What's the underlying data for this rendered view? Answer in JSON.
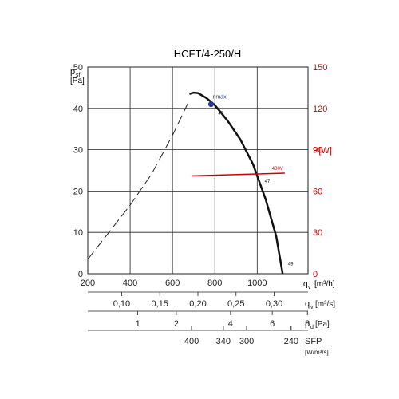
{
  "chart_data": {
    "type": "line",
    "title": "HCFT/4-250/H",
    "y_axis": {
      "label": "p",
      "subscript": "sf",
      "unit": "[Pa]",
      "ticks": [
        0,
        10,
        20,
        30,
        40,
        50
      ],
      "range": [
        0,
        50
      ]
    },
    "x_axis": {
      "label": "q",
      "subscript": "v",
      "unit": "[m³/h]",
      "ticks": [
        200,
        400,
        600,
        800,
        1000
      ],
      "range": [
        200,
        1240
      ]
    },
    "y2_axis": {
      "label": "P[W]",
      "ticks": [
        0,
        30,
        60,
        90,
        120,
        150
      ],
      "range": [
        0,
        150
      ],
      "color": "#d40000"
    },
    "grid": true,
    "series": [
      {
        "style": "dashed",
        "color": "#222222",
        "x": [
          200,
          300,
          400,
          500,
          600,
          680
        ],
        "y": [
          3.5,
          10,
          16.6,
          24,
          33.5,
          42
        ]
      },
      {
        "style": "solid",
        "color": "#111111",
        "x": [
          680,
          700,
          720,
          760,
          800,
          860,
          920,
          980,
          1040,
          1090,
          1120
        ],
        "y": [
          43.5,
          43.8,
          43.7,
          42.5,
          40.8,
          37,
          32.5,
          26.5,
          18,
          9,
          0
        ]
      },
      {
        "name": "400V",
        "style": "solid",
        "color": "#d40000",
        "axis": "y2",
        "x": [
          690,
          1130
        ],
        "y": [
          71,
          73
        ]
      }
    ],
    "marker": {
      "label": "ηmax",
      "x": 782,
      "y": 41,
      "color": "#2a3a9a"
    },
    "annotations": [
      {
        "text": "47",
        "x": 800,
        "y": 38.5
      },
      {
        "text": "47",
        "x": 1020,
        "y": 22
      },
      {
        "text": "49",
        "x": 1130,
        "y": 2
      }
    ],
    "extra_scales": [
      {
        "label": "q",
        "subscript": "v",
        "unit": "[m³/s]",
        "labels": [
          "0,10",
          "0,15",
          "0,20",
          "0,25",
          "0,30"
        ],
        "values": [
          360,
          540,
          720,
          900,
          1080
        ]
      },
      {
        "label": "p",
        "subscript": "d",
        "unit": "[Pa]",
        "labels": [
          "1",
          "2",
          "4",
          "6",
          "8"
        ],
        "values": [
          436,
          618,
          874,
          1071,
          1237
        ]
      },
      {
        "label": "SFP",
        "subscript": "",
        "unit": "[W/m³/s]",
        "labels": [
          "400",
          "340",
          "300",
          "240"
        ],
        "values": [
          690,
          840,
          950,
          1160
        ]
      }
    ]
  }
}
